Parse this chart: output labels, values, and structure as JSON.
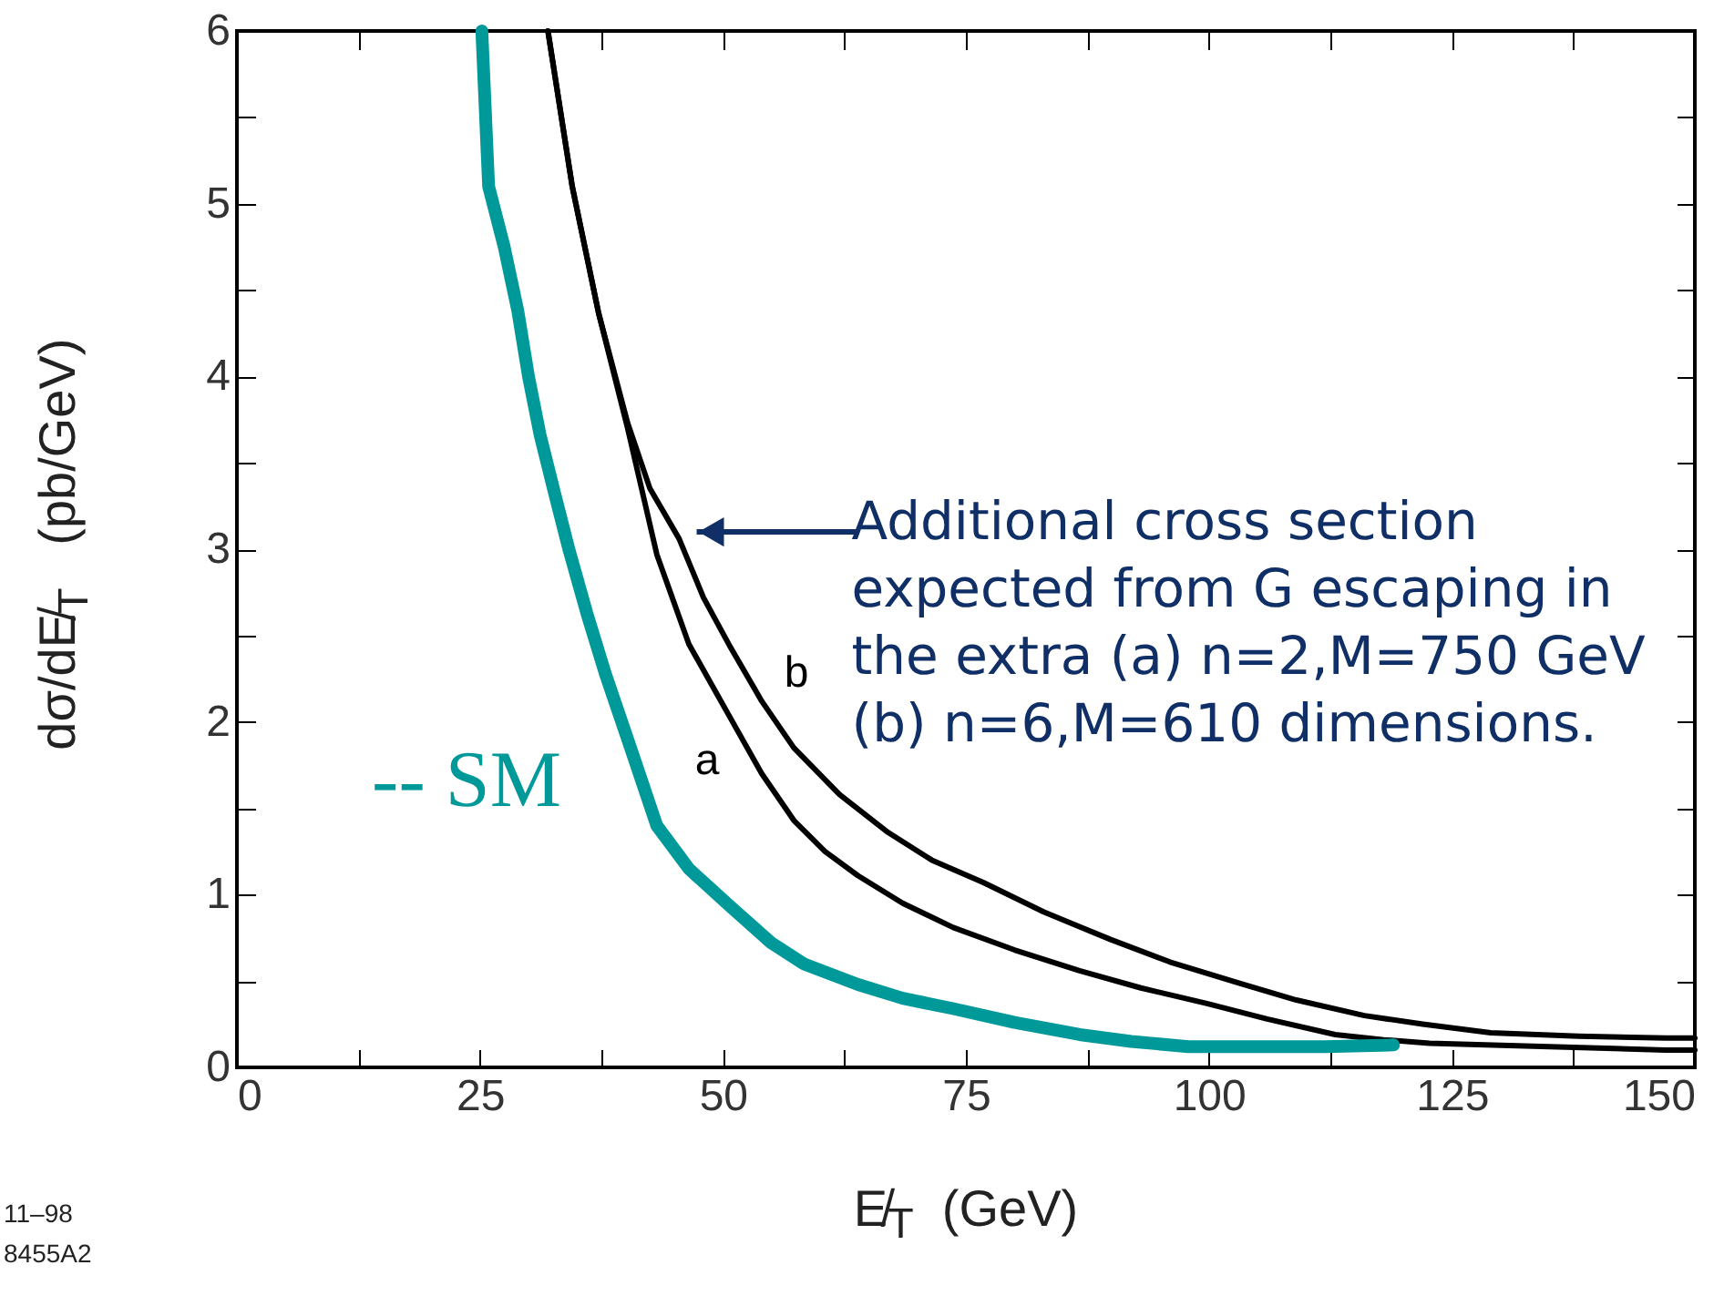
{
  "chart_data": {
    "type": "line",
    "xlabel": "E̸$_{T}$  (GeV)",
    "ylabel": "dσ/dE̸$_{T}$   (pb/GeV)",
    "xlim": [
      0,
      150
    ],
    "ylim": [
      0,
      6
    ],
    "xticks": [
      0,
      {
        "value": 12.5,
        "label": null
      },
      25,
      {
        "value": 37.5,
        "label": null
      },
      50,
      {
        "value": 62.5,
        "label": null
      },
      75,
      {
        "value": 87.5,
        "label": null
      },
      100,
      {
        "value": 112.5,
        "label": null
      },
      125,
      {
        "value": 137.5,
        "label": null
      },
      150
    ],
    "yticks": [
      0,
      {
        "value": 0.5,
        "label": null
      },
      1,
      {
        "value": 1.5,
        "label": null
      },
      2,
      {
        "value": 2.5,
        "label": null
      },
      3,
      {
        "value": 3.5,
        "label": null
      },
      4,
      {
        "value": 4.5,
        "label": null
      },
      5,
      {
        "value": 5.5,
        "label": null
      },
      6
    ],
    "grid": false,
    "marker": "none",
    "series": [
      {
        "name": "a",
        "color": "#000000",
        "x": [
          32,
          34.5,
          37.2,
          40.2,
          43.2,
          46.5,
          50.8,
          54,
          57.3,
          60.5,
          63.9,
          68.5,
          73.7,
          80,
          86.7,
          93,
          99.8,
          106,
          113,
          118,
          122.7,
          135,
          147,
          150
        ],
        "values": [
          6.0,
          5.1,
          4.37,
          3.7,
          2.97,
          2.45,
          2.02,
          1.7,
          1.43,
          1.25,
          1.11,
          0.95,
          0.81,
          0.68,
          0.56,
          0.46,
          0.37,
          0.28,
          0.19,
          0.16,
          0.14,
          0.12,
          0.1,
          0.1
        ]
      },
      {
        "name": "b",
        "color": "#000000",
        "x": [
          32,
          34.5,
          37.2,
          40.2,
          42.5,
          45.5,
          48,
          50.8,
          54,
          57.3,
          62,
          67,
          71.5,
          76.8,
          83,
          89.9,
          96,
          103,
          109,
          116,
          122,
          129,
          138,
          147,
          150
        ],
        "values": [
          6.0,
          5.1,
          4.37,
          3.73,
          3.35,
          3.06,
          2.72,
          2.43,
          2.12,
          1.85,
          1.58,
          1.36,
          1.2,
          1.07,
          0.9,
          0.74,
          0.61,
          0.49,
          0.39,
          0.3,
          0.25,
          0.2,
          0.18,
          0.17,
          0.17
        ]
      },
      {
        "name": "-- SM",
        "color": "#00999a",
        "x": [
          25.2,
          25.9,
          27.5,
          28.9,
          30,
          31.2,
          32.7,
          34.2,
          36,
          37.9,
          40.5,
          43.2,
          46.5,
          50.8,
          55,
          58.3,
          63.9,
          68.5,
          73.7,
          80,
          86.7,
          92,
          97.9,
          105,
          112,
          119
        ],
        "values": [
          6.0,
          5.1,
          4.75,
          4.38,
          4.0,
          3.66,
          3.32,
          2.99,
          2.63,
          2.28,
          1.85,
          1.4,
          1.15,
          0.93,
          0.72,
          0.6,
          0.48,
          0.4,
          0.34,
          0.26,
          0.19,
          0.15,
          0.12,
          0.12,
          0.12,
          0.13
        ]
      }
    ],
    "annotations": [
      {
        "text": "Additional cross section\nexpected from G escaping in\nthe extra (a) n=2,M=750 GeV\n(b) n=6,M=610  dimensions.",
        "x": 45.8,
        "y": 3.1
      },
      "11–98",
      "8455A2"
    ]
  }
}
